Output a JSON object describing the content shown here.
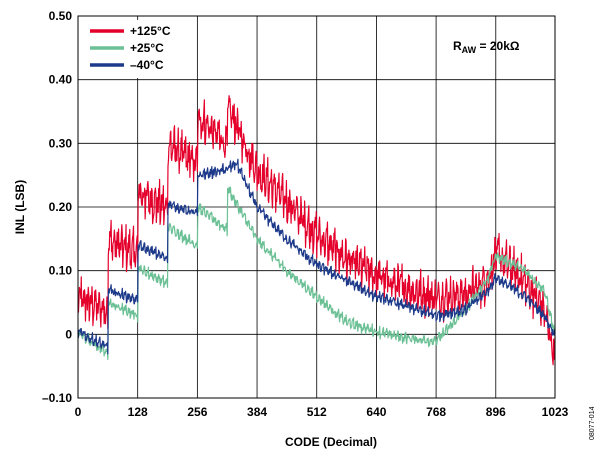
{
  "chart_data": {
    "type": "line",
    "xlabel": "CODE (Decimal)",
    "ylabel": "INL (LSB)",
    "xlim": [
      0,
      1023
    ],
    "ylim": [
      -0.1,
      0.5
    ],
    "x_ticks": [
      0,
      128,
      256,
      384,
      512,
      640,
      768,
      896,
      1023
    ],
    "y_ticks": [
      -0.1,
      0,
      0.1,
      0.2,
      0.3,
      0.4,
      0.5
    ],
    "x_tick_labels": [
      "0",
      "128",
      "256",
      "384",
      "512",
      "640",
      "768",
      "896",
      "1023"
    ],
    "y_tick_labels": [
      "–0.10",
      "0",
      "0.10",
      "0.20",
      "0.30",
      "0.40",
      "0.50"
    ],
    "grid": true,
    "legend_position": "top-left",
    "annotation": {
      "text": "R",
      "sub": "AW",
      "rest": " = 20kΩ"
    },
    "figure_id": "08077-014",
    "series": [
      {
        "name": "+125°C",
        "color": "#e4002b",
        "band": 0.045,
        "points": [
          [
            0,
            0.06
          ],
          [
            64,
            0.04
          ],
          [
            65,
            0.15
          ],
          [
            128,
            0.13
          ],
          [
            129,
            0.225
          ],
          [
            192,
            0.2
          ],
          [
            193,
            0.3
          ],
          [
            256,
            0.27
          ],
          [
            257,
            0.345
          ],
          [
            320,
            0.3
          ],
          [
            321,
            0.36
          ],
          [
            384,
            0.26
          ],
          [
            448,
            0.21
          ],
          [
            512,
            0.16
          ],
          [
            576,
            0.12
          ],
          [
            640,
            0.095
          ],
          [
            704,
            0.075
          ],
          [
            768,
            0.06
          ],
          [
            832,
            0.065
          ],
          [
            880,
            0.09
          ],
          [
            896,
            0.13
          ],
          [
            960,
            0.085
          ],
          [
            1000,
            0.04
          ],
          [
            1023,
            -0.035
          ]
        ]
      },
      {
        "name": "+25°C",
        "color": "#6cc095",
        "band": 0.012,
        "points": [
          [
            0,
            0.005
          ],
          [
            64,
            -0.03
          ],
          [
            65,
            0.05
          ],
          [
            128,
            0.03
          ],
          [
            129,
            0.105
          ],
          [
            192,
            0.08
          ],
          [
            193,
            0.17
          ],
          [
            256,
            0.14
          ],
          [
            257,
            0.2
          ],
          [
            320,
            0.165
          ],
          [
            321,
            0.23
          ],
          [
            384,
            0.15
          ],
          [
            448,
            0.1
          ],
          [
            512,
            0.06
          ],
          [
            576,
            0.02
          ],
          [
            640,
            0.005
          ],
          [
            704,
            -0.005
          ],
          [
            768,
            -0.01
          ],
          [
            832,
            0.04
          ],
          [
            880,
            0.09
          ],
          [
            896,
            0.125
          ],
          [
            960,
            0.1
          ],
          [
            1000,
            0.07
          ],
          [
            1023,
            0.0
          ]
        ]
      },
      {
        "name": "–40°C",
        "color": "#1d3a8a",
        "band": 0.012,
        "points": [
          [
            0,
            0.005
          ],
          [
            64,
            -0.02
          ],
          [
            65,
            0.07
          ],
          [
            128,
            0.055
          ],
          [
            129,
            0.14
          ],
          [
            192,
            0.12
          ],
          [
            193,
            0.205
          ],
          [
            256,
            0.19
          ],
          [
            257,
            0.25
          ],
          [
            320,
            0.26
          ],
          [
            340,
            0.27
          ],
          [
            384,
            0.2
          ],
          [
            448,
            0.15
          ],
          [
            512,
            0.11
          ],
          [
            576,
            0.085
          ],
          [
            640,
            0.06
          ],
          [
            704,
            0.045
          ],
          [
            768,
            0.03
          ],
          [
            832,
            0.04
          ],
          [
            880,
            0.07
          ],
          [
            896,
            0.09
          ],
          [
            960,
            0.06
          ],
          [
            1000,
            0.03
          ],
          [
            1023,
            0.0
          ]
        ]
      }
    ]
  }
}
